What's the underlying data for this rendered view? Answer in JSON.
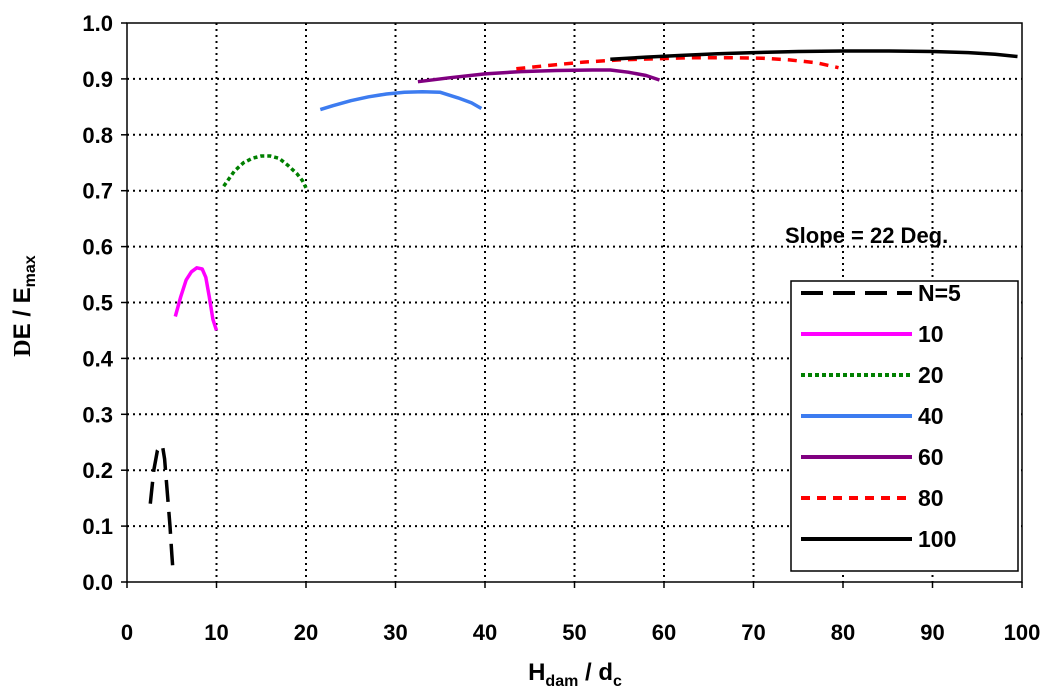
{
  "chart_data": {
    "type": "line",
    "xlabel": {
      "main": "H",
      "sub1": "dam",
      "mid": " / d",
      "sub2": "c"
    },
    "ylabel": {
      "delta": "D",
      "main": "E / E",
      "sub": "max"
    },
    "xlim": [
      0,
      100
    ],
    "ylim": [
      0.0,
      1.0
    ],
    "x_ticks": [
      "0",
      "10",
      "20",
      "30",
      "40",
      "50",
      "60",
      "70",
      "80",
      "90",
      "100"
    ],
    "y_ticks": [
      "0.0",
      "0.1",
      "0.2",
      "0.3",
      "0.4",
      "0.5",
      "0.6",
      "0.7",
      "0.8",
      "0.9",
      "1.0"
    ],
    "grid": true,
    "annotation": "Slope = 22 Deg.",
    "legend_position": "right",
    "series": [
      {
        "name": "N=5",
        "color": "#000000",
        "dash": "long-dash",
        "x": [
          2.6,
          3.0,
          3.4,
          3.8,
          4.0,
          4.2,
          4.4,
          4.6,
          4.8,
          5.0,
          5.1
        ],
        "y": [
          0.14,
          0.2,
          0.235,
          0.245,
          0.24,
          0.22,
          0.18,
          0.14,
          0.1,
          0.05,
          0.03
        ]
      },
      {
        "name": "10",
        "color": "#ff00ff",
        "dash": "solid",
        "x": [
          5.4,
          6.0,
          6.6,
          7.2,
          7.8,
          8.4,
          8.8,
          9.2,
          9.6,
          10.0
        ],
        "y": [
          0.475,
          0.51,
          0.54,
          0.555,
          0.562,
          0.56,
          0.545,
          0.51,
          0.47,
          0.45
        ]
      },
      {
        "name": "20",
        "color": "#008000",
        "dash": "dotted",
        "x": [
          10.8,
          12.0,
          13.0,
          14.0,
          15.0,
          16.0,
          17.0,
          18.0,
          19.0,
          19.6,
          20.0
        ],
        "y": [
          0.708,
          0.735,
          0.75,
          0.758,
          0.762,
          0.762,
          0.758,
          0.745,
          0.73,
          0.718,
          0.705
        ]
      },
      {
        "name": "40",
        "color": "#3d7cf0",
        "dash": "solid",
        "x": [
          21.6,
          23.0,
          25.0,
          27.0,
          29.0,
          31.0,
          33.0,
          35.0,
          37.0,
          38.5,
          39.6
        ],
        "y": [
          0.845,
          0.852,
          0.861,
          0.868,
          0.873,
          0.876,
          0.877,
          0.876,
          0.866,
          0.857,
          0.847
        ]
      },
      {
        "name": "60",
        "color": "#800080",
        "dash": "solid",
        "x": [
          32.5,
          36.0,
          40.0,
          44.0,
          48.0,
          52.0,
          54.0,
          56.0,
          58.0,
          59.5
        ],
        "y": [
          0.895,
          0.902,
          0.909,
          0.913,
          0.915,
          0.916,
          0.916,
          0.912,
          0.906,
          0.898
        ]
      },
      {
        "name": "80",
        "color": "#ff0000",
        "dash": "short-dash",
        "x": [
          43.5,
          47.0,
          51.0,
          55.0,
          59.0,
          63.0,
          67.0,
          71.0,
          74.0,
          77.0,
          79.5
        ],
        "y": [
          0.918,
          0.924,
          0.93,
          0.934,
          0.936,
          0.938,
          0.938,
          0.937,
          0.934,
          0.929,
          0.92
        ]
      },
      {
        "name": "100",
        "color": "#000000",
        "dash": "solid",
        "x": [
          54.0,
          58.0,
          62.0,
          66.0,
          70.0,
          75.0,
          80.0,
          85.0,
          90.0,
          94.0,
          97.0,
          99.5
        ],
        "y": [
          0.935,
          0.939,
          0.942,
          0.945,
          0.947,
          0.949,
          0.95,
          0.95,
          0.949,
          0.947,
          0.944,
          0.94
        ]
      }
    ]
  }
}
